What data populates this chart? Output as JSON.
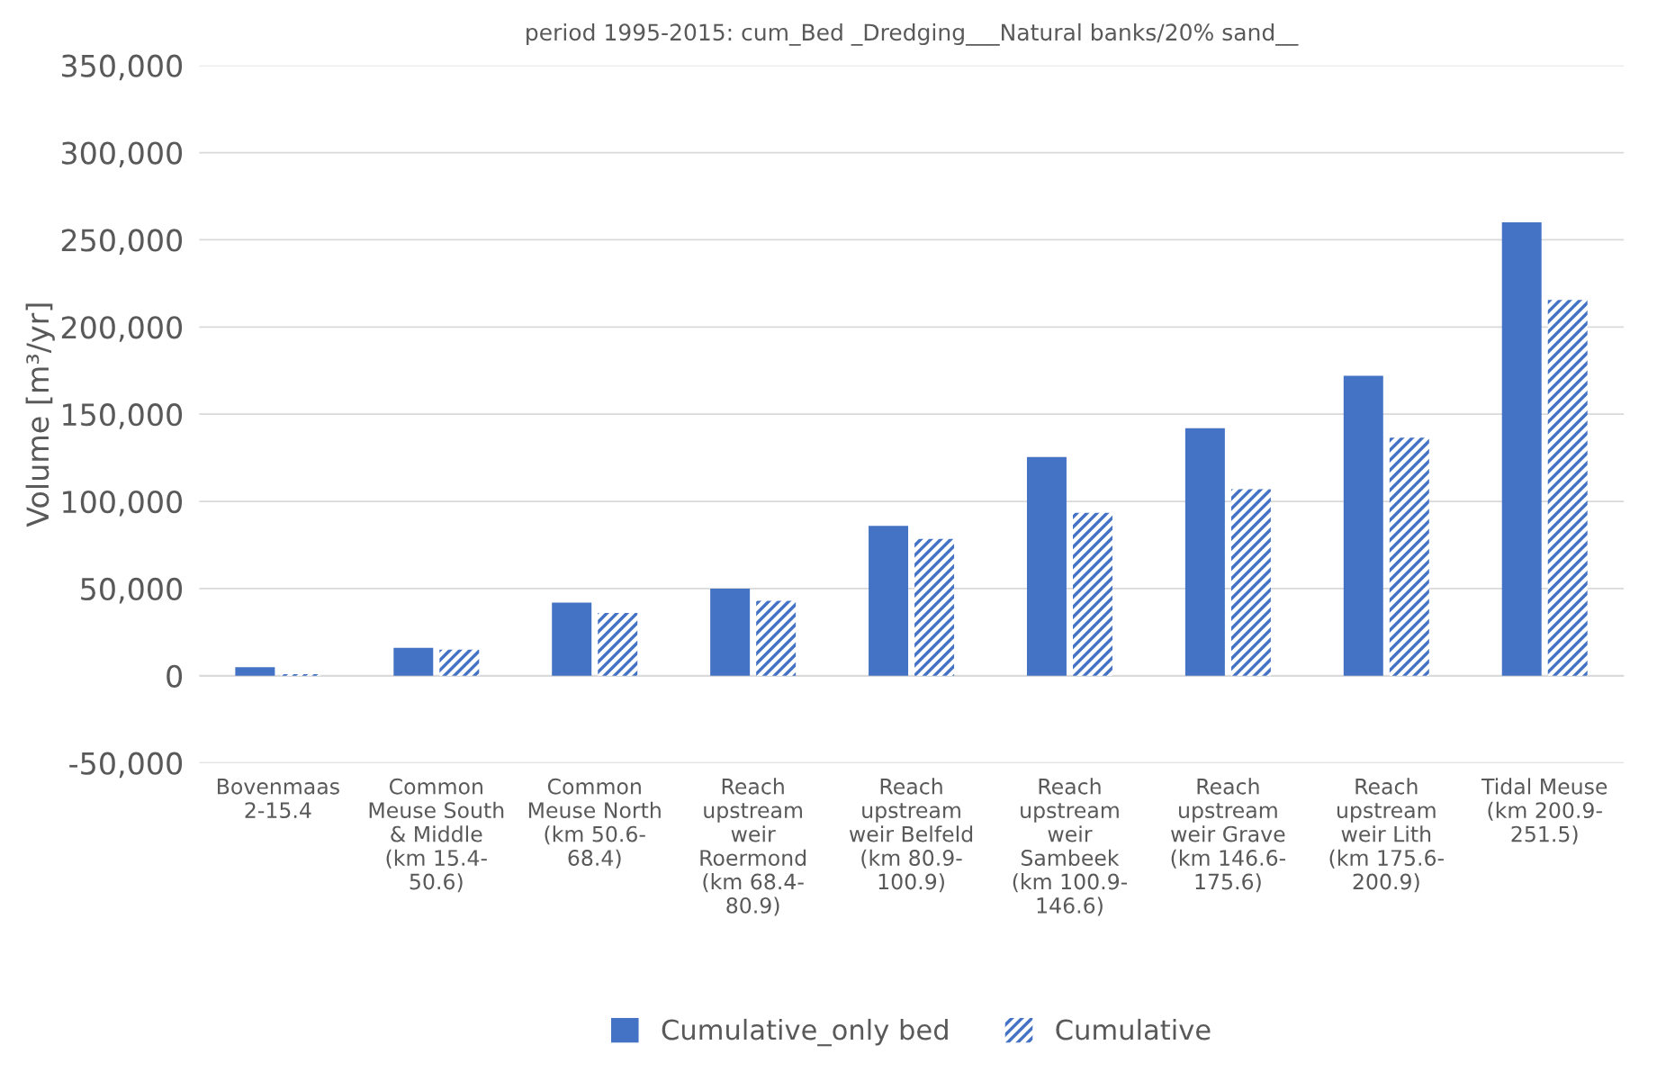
{
  "chart_data": {
    "type": "bar",
    "title": "period 1995-2015: cum_Bed _Dredging___Natural banks/20% sand__",
    "ylabel": "Volume [m³/yr]",
    "categories": [
      "Bovenmaas\n2-15.4",
      "Common\nMeuse South\n& Middle\n(km 15.4-\n50.6)",
      "Common\nMeuse North\n(km 50.6-\n68.4)",
      "Reach\nupstream\nweir\nRoermond\n(km 68.4-\n80.9)",
      "Reach\nupstream\nweir Belfeld\n(km 80.9-\n100.9)",
      "Reach\nupstream\nweir\nSambeek\n(km 100.9-\n146.6)",
      "Reach\nupstream\nweir Grave\n(km 146.6-\n175.6)",
      "Reach\nupstream\nweir Lith\n(km 175.6-\n200.9)",
      "Tidal Meuse\n(km 200.9-\n251.5)"
    ],
    "series": [
      {
        "name": "Cumulative_only bed",
        "color": "#4472c4",
        "values": [
          5000,
          16000,
          42000,
          50000,
          86000,
          125500,
          142000,
          172000,
          260000
        ]
      },
      {
        "name": "Cumulative",
        "color": "#4472c4",
        "values": [
          1000,
          15000,
          36000,
          43000,
          78500,
          93500,
          107000,
          136500,
          215500
        ]
      }
    ],
    "ylim": [
      -50000,
      350000
    ],
    "yticks": [
      {
        "value": -50000,
        "label": "-50,000"
      },
      {
        "value": 0,
        "label": "0"
      },
      {
        "value": 50000,
        "label": "50,000"
      },
      {
        "value": 100000,
        "label": "100,000"
      },
      {
        "value": 150000,
        "label": "150,000"
      },
      {
        "value": 200000,
        "label": "200,000"
      },
      {
        "value": 250000,
        "label": "250,000"
      },
      {
        "value": 300000,
        "label": "300,000"
      },
      {
        "value": 350000,
        "label": "350,000"
      }
    ],
    "grid": "y",
    "legend": "bottom"
  }
}
